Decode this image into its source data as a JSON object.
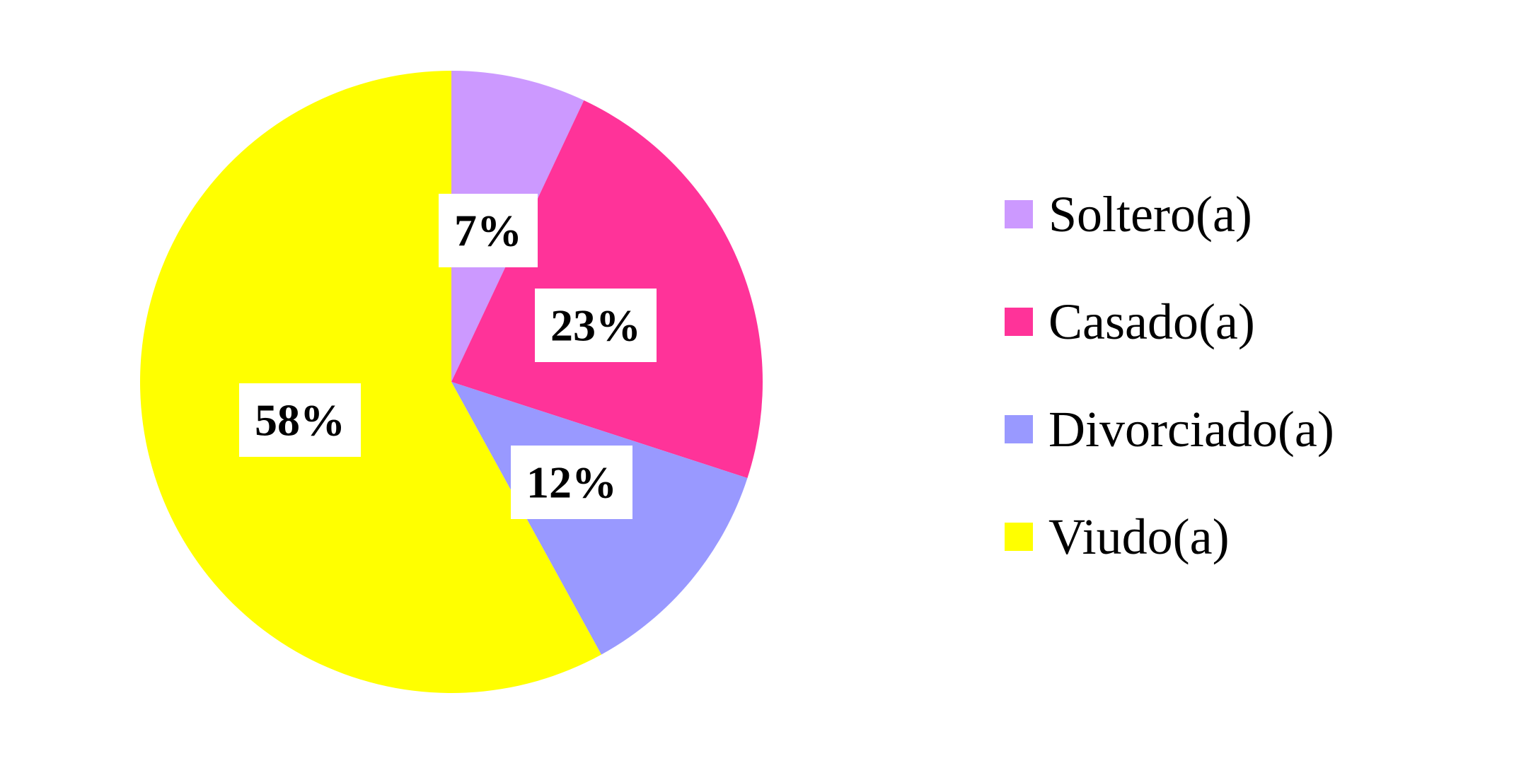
{
  "chart_data": {
    "type": "pie",
    "categories": [
      "Soltero(a)",
      "Casado(a)",
      "Divorciado(a)",
      "Viudo(a)"
    ],
    "values": [
      7,
      23,
      12,
      58
    ],
    "data_labels": [
      "7%",
      "23%",
      "12%",
      "58%"
    ],
    "colors": [
      "#cc99ff",
      "#ff3399",
      "#9999ff",
      "#ffff00"
    ],
    "title": "",
    "start_angle_deg": 0,
    "direction": "clockwise",
    "legend_position": "right",
    "grid": false
  }
}
